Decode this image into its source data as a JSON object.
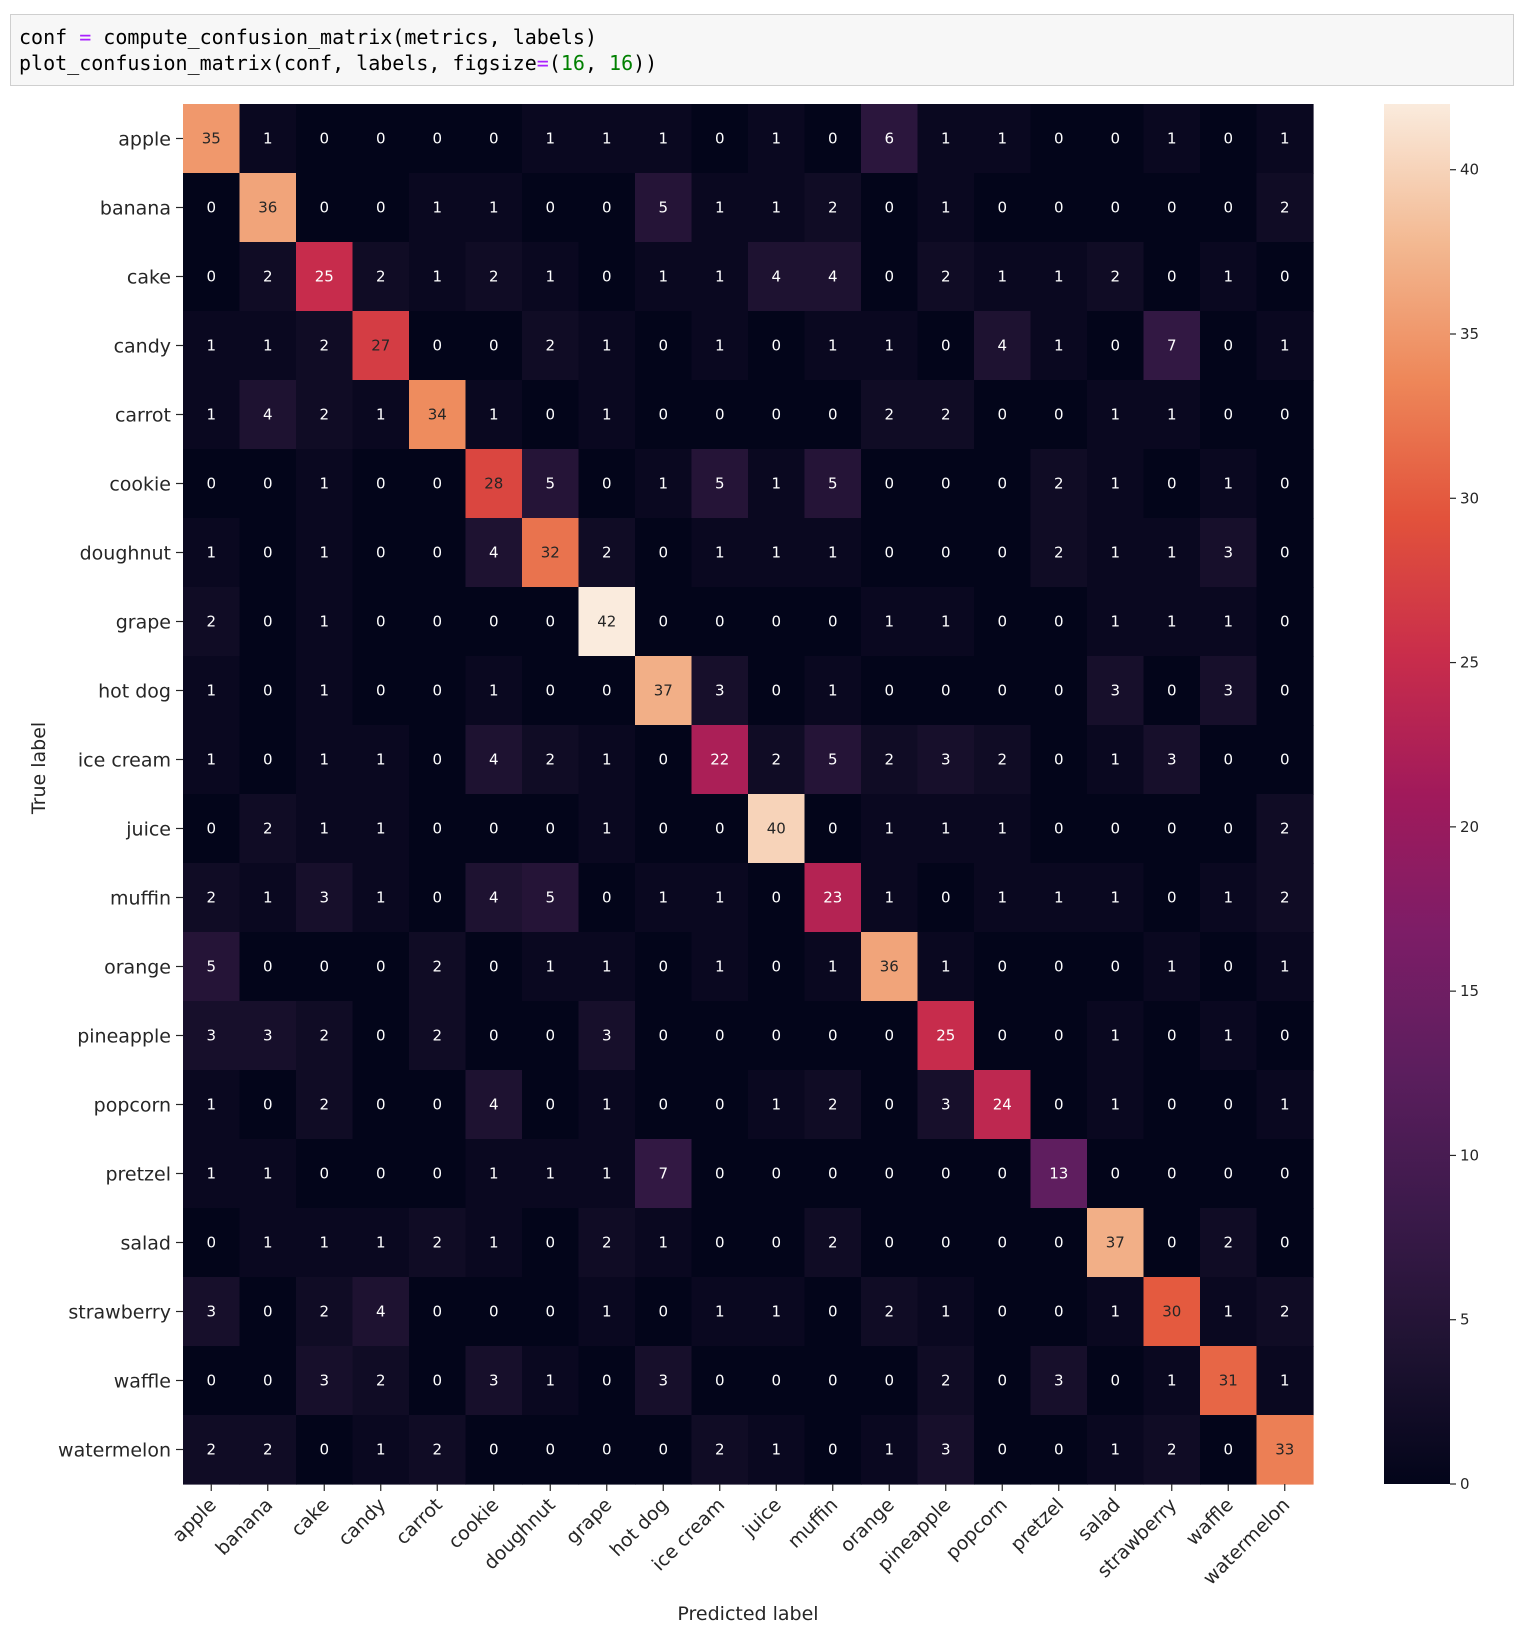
{
  "code": {
    "line1": {
      "a": "conf ",
      "op": "=",
      "b": " compute_confusion_matrix(metrics, labels)"
    },
    "line2": {
      "a": "plot_confusion_matrix(conf, labels, figsize",
      "op": "=",
      "b": "(",
      "n1": "16",
      "c": ", ",
      "n2": "16",
      "d": "))"
    }
  },
  "chart_data": {
    "type": "heatmap",
    "xlabel": "Predicted label",
    "ylabel": "True label",
    "labels": [
      "apple",
      "banana",
      "cake",
      "candy",
      "carrot",
      "cookie",
      "doughnut",
      "grape",
      "hot dog",
      "ice cream",
      "juice",
      "muffin",
      "orange",
      "pineapple",
      "popcorn",
      "pretzel",
      "salad",
      "strawberry",
      "waffle",
      "watermelon"
    ],
    "matrix": [
      [
        35,
        1,
        0,
        0,
        0,
        0,
        1,
        1,
        1,
        0,
        1,
        0,
        6,
        1,
        1,
        0,
        0,
        1,
        0,
        1
      ],
      [
        0,
        36,
        0,
        0,
        1,
        1,
        0,
        0,
        5,
        1,
        1,
        2,
        0,
        1,
        0,
        0,
        0,
        0,
        0,
        2
      ],
      [
        0,
        2,
        25,
        2,
        1,
        2,
        1,
        0,
        1,
        1,
        4,
        4,
        0,
        2,
        1,
        1,
        2,
        0,
        1,
        0
      ],
      [
        1,
        1,
        2,
        27,
        0,
        0,
        2,
        1,
        0,
        1,
        0,
        1,
        1,
        0,
        4,
        1,
        0,
        7,
        0,
        1
      ],
      [
        1,
        4,
        2,
        1,
        34,
        1,
        0,
        1,
        0,
        0,
        0,
        0,
        2,
        2,
        0,
        0,
        1,
        1,
        0,
        0
      ],
      [
        0,
        0,
        1,
        0,
        0,
        28,
        5,
        0,
        1,
        5,
        1,
        5,
        0,
        0,
        0,
        2,
        1,
        0,
        1,
        0
      ],
      [
        1,
        0,
        1,
        0,
        0,
        4,
        32,
        2,
        0,
        1,
        1,
        1,
        0,
        0,
        0,
        2,
        1,
        1,
        3,
        0
      ],
      [
        2,
        0,
        1,
        0,
        0,
        0,
        0,
        42,
        0,
        0,
        0,
        0,
        1,
        1,
        0,
        0,
        1,
        1,
        1,
        0
      ],
      [
        1,
        0,
        1,
        0,
        0,
        1,
        0,
        0,
        37,
        3,
        0,
        1,
        0,
        0,
        0,
        0,
        3,
        0,
        3,
        0
      ],
      [
        1,
        0,
        1,
        1,
        0,
        4,
        2,
        1,
        0,
        22,
        2,
        5,
        2,
        3,
        2,
        0,
        1,
        3,
        0,
        0
      ],
      [
        0,
        2,
        1,
        1,
        0,
        0,
        0,
        1,
        0,
        0,
        40,
        0,
        1,
        1,
        1,
        0,
        0,
        0,
        0,
        2
      ],
      [
        2,
        1,
        3,
        1,
        0,
        4,
        5,
        0,
        1,
        1,
        0,
        23,
        1,
        0,
        1,
        1,
        1,
        0,
        1,
        2
      ],
      [
        5,
        0,
        0,
        0,
        2,
        0,
        1,
        1,
        0,
        1,
        0,
        1,
        36,
        1,
        0,
        0,
        0,
        1,
        0,
        1
      ],
      [
        3,
        3,
        2,
        0,
        2,
        0,
        0,
        3,
        0,
        0,
        0,
        0,
        0,
        25,
        0,
        0,
        1,
        0,
        1,
        0
      ],
      [
        1,
        0,
        2,
        0,
        0,
        4,
        0,
        1,
        0,
        0,
        1,
        2,
        0,
        3,
        24,
        0,
        1,
        0,
        0,
        1
      ],
      [
        1,
        1,
        0,
        0,
        0,
        1,
        1,
        1,
        7,
        0,
        0,
        0,
        0,
        0,
        0,
        13,
        0,
        0,
        0,
        0
      ],
      [
        0,
        1,
        1,
        1,
        2,
        1,
        0,
        2,
        1,
        0,
        0,
        2,
        0,
        0,
        0,
        0,
        37,
        0,
        2,
        0
      ],
      [
        3,
        0,
        2,
        4,
        0,
        0,
        0,
        1,
        0,
        1,
        1,
        0,
        2,
        1,
        0,
        0,
        1,
        30,
        1,
        2
      ],
      [
        0,
        0,
        3,
        2,
        0,
        3,
        1,
        0,
        3,
        0,
        0,
        0,
        0,
        2,
        0,
        3,
        0,
        1,
        31,
        1
      ],
      [
        2,
        2,
        0,
        1,
        2,
        0,
        0,
        0,
        0,
        2,
        1,
        0,
        1,
        3,
        0,
        0,
        1,
        2,
        0,
        33
      ]
    ],
    "colorbar": {
      "min": 0,
      "max": 42,
      "ticks": [
        0,
        5,
        10,
        15,
        20,
        25,
        30,
        35,
        40
      ],
      "colormap": "rocket"
    }
  }
}
